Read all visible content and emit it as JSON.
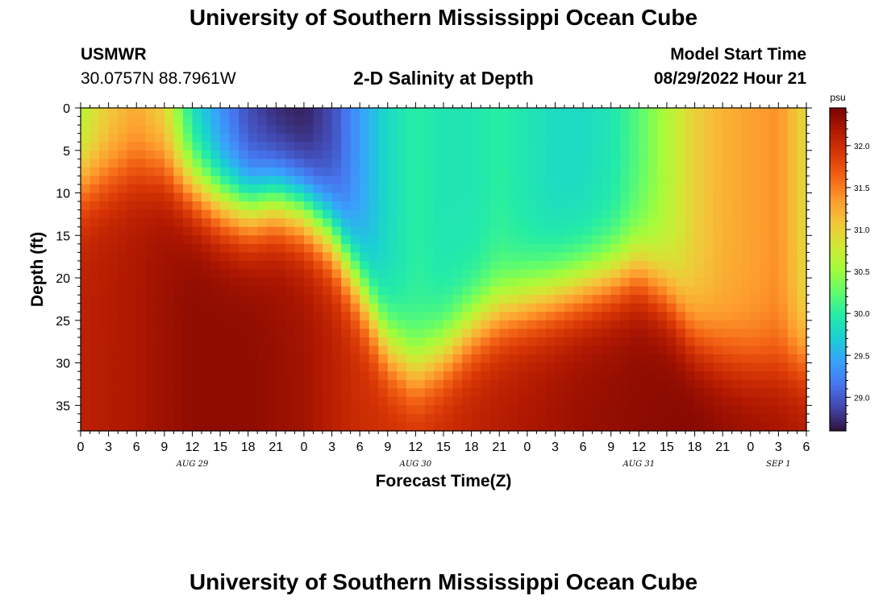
{
  "header": {
    "title": "University of Southern Mississippi Ocean Cube",
    "station_id": "USMWR",
    "station_coords": "30.0757N  88.7961W",
    "plot_title": "2-D Salinity at Depth",
    "model_start_label": "Model Start Time",
    "model_start_value": "08/29/2022 Hour 21"
  },
  "footer": {
    "title": "University of Southern Mississippi Ocean Cube"
  },
  "chart_data": {
    "type": "heatmap",
    "title": "2-D Salinity at Depth",
    "xlabel": "Forecast Time(Z)",
    "ylabel": "Depth (ft)",
    "x_tick_labels": [
      "0",
      "3",
      "6",
      "9",
      "12",
      "15",
      "18",
      "21",
      "0",
      "3",
      "6",
      "9",
      "12",
      "15",
      "18",
      "21",
      "0",
      "3",
      "6",
      "9",
      "12",
      "15",
      "18",
      "21",
      "0",
      "3",
      "6"
    ],
    "date_labels": [
      {
        "label": "AUG 29",
        "hours_from_start": 12
      },
      {
        "label": "AUG 30",
        "hours_from_start": 36
      },
      {
        "label": "AUG 31",
        "hours_from_start": 60
      },
      {
        "label": "SEP 1",
        "hours_from_start": 75
      }
    ],
    "xlim_hours": [
      0,
      78
    ],
    "y_ticks": [
      0,
      5,
      10,
      15,
      20,
      25,
      30,
      35
    ],
    "ylim": [
      0,
      38
    ],
    "y_inverted": true,
    "colorbar": {
      "unit": "psu",
      "range": [
        28.6,
        32.45
      ],
      "ticks": [
        29.0,
        29.5,
        30.0,
        30.5,
        31.0,
        31.5,
        32.0
      ],
      "tick_labels": [
        "29.0",
        "29.5",
        "30.0",
        "30.5",
        "31.0",
        "31.5",
        "32.0"
      ],
      "colormap": [
        "#30123b",
        "#4145ab",
        "#4675ed",
        "#39a2fc",
        "#1bcfd4",
        "#24eca6",
        "#61fc6c",
        "#a4fc3b",
        "#d1e834",
        "#f3c63a",
        "#fe9b2d",
        "#f36315",
        "#d93806",
        "#b11901",
        "#7a0402"
      ]
    },
    "surface_salinity_psu": [
      {
        "hour": 0,
        "psu": 30.6
      },
      {
        "hour": 3,
        "psu": 31.0
      },
      {
        "hour": 6,
        "psu": 31.2
      },
      {
        "hour": 9,
        "psu": 30.9
      },
      {
        "hour": 12,
        "psu": 29.8
      },
      {
        "hour": 15,
        "psu": 29.3
      },
      {
        "hour": 18,
        "psu": 28.9
      },
      {
        "hour": 21,
        "psu": 28.7
      },
      {
        "hour": 24,
        "psu": 28.65
      },
      {
        "hour": 27,
        "psu": 28.9
      },
      {
        "hour": 30,
        "psu": 29.4
      },
      {
        "hour": 33,
        "psu": 29.8
      },
      {
        "hour": 36,
        "psu": 30.0
      },
      {
        "hour": 39,
        "psu": 29.9
      },
      {
        "hour": 42,
        "psu": 29.9
      },
      {
        "hour": 45,
        "psu": 30.0
      },
      {
        "hour": 48,
        "psu": 29.9
      },
      {
        "hour": 51,
        "psu": 29.8
      },
      {
        "hour": 54,
        "psu": 29.8
      },
      {
        "hour": 57,
        "psu": 29.9
      },
      {
        "hour": 60,
        "psu": 30.2
      },
      {
        "hour": 63,
        "psu": 30.6
      },
      {
        "hour": 66,
        "psu": 31.0
      },
      {
        "hour": 69,
        "psu": 31.2
      },
      {
        "hour": 72,
        "psu": 31.3
      },
      {
        "hour": 75,
        "psu": 31.4
      },
      {
        "hour": 78,
        "psu": 30.9
      }
    ],
    "halocline_depth_ft": [
      {
        "hour": 0,
        "depth": 9
      },
      {
        "hour": 3,
        "depth": 8
      },
      {
        "hour": 6,
        "depth": 7
      },
      {
        "hour": 9,
        "depth": 7
      },
      {
        "hour": 12,
        "depth": 9
      },
      {
        "hour": 15,
        "depth": 11
      },
      {
        "hour": 18,
        "depth": 12
      },
      {
        "hour": 21,
        "depth": 11
      },
      {
        "hour": 24,
        "depth": 12
      },
      {
        "hour": 27,
        "depth": 15
      },
      {
        "hour": 30,
        "depth": 21
      },
      {
        "hour": 33,
        "depth": 28
      },
      {
        "hour": 36,
        "depth": 31
      },
      {
        "hour": 39,
        "depth": 29
      },
      {
        "hour": 42,
        "depth": 26
      },
      {
        "hour": 45,
        "depth": 24
      },
      {
        "hour": 48,
        "depth": 23
      },
      {
        "hour": 51,
        "depth": 22
      },
      {
        "hour": 54,
        "depth": 21
      },
      {
        "hour": 57,
        "depth": 20
      },
      {
        "hour": 60,
        "depth": 19
      },
      {
        "hour": 63,
        "depth": 22
      },
      {
        "hour": 66,
        "depth": 27
      },
      {
        "hour": 69,
        "depth": 29
      },
      {
        "hour": 72,
        "depth": 30
      },
      {
        "hour": 75,
        "depth": 30
      },
      {
        "hour": 78,
        "depth": 30
      }
    ],
    "bottom_salinity_psu": [
      {
        "hour": 0,
        "psu": 32.1
      },
      {
        "hour": 6,
        "psu": 32.2
      },
      {
        "hour": 12,
        "psu": 32.35
      },
      {
        "hour": 18,
        "psu": 32.35
      },
      {
        "hour": 24,
        "psu": 32.25
      },
      {
        "hour": 30,
        "psu": 32.0
      },
      {
        "hour": 36,
        "psu": 32.0
      },
      {
        "hour": 42,
        "psu": 32.1
      },
      {
        "hour": 48,
        "psu": 32.2
      },
      {
        "hour": 54,
        "psu": 32.3
      },
      {
        "hour": 60,
        "psu": 32.35
      },
      {
        "hour": 66,
        "psu": 32.4
      },
      {
        "hour": 72,
        "psu": 32.3
      },
      {
        "hour": 78,
        "psu": 32.2
      }
    ]
  }
}
